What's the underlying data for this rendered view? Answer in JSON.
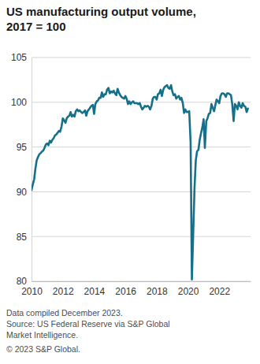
{
  "chart_data": {
    "type": "line",
    "title": "US manufacturing output volume,",
    "subtitle": "2017 = 100",
    "notes": [
      "Data compiled December 2023.",
      "Source: US Federal Reserve via S&P Global",
      "Market Intelligence.",
      "© 2023 S&P Global."
    ],
    "color": "#16708a",
    "grid": true,
    "xlim": [
      2010,
      2024
    ],
    "ylim": [
      80,
      105
    ],
    "xticks": [
      2010,
      2012,
      2014,
      2016,
      2018,
      2020,
      2022
    ],
    "yticks": [
      80,
      85,
      90,
      95,
      100,
      105
    ],
    "x": [
      2010,
      2010.08,
      2010.17,
      2010.25,
      2010.33,
      2010.42,
      2010.5,
      2010.58,
      2010.67,
      2010.75,
      2010.83,
      2010.92,
      2011,
      2011.08,
      2011.17,
      2011.25,
      2011.33,
      2011.42,
      2011.5,
      2011.58,
      2011.67,
      2011.75,
      2011.83,
      2011.92,
      2012,
      2012.08,
      2012.17,
      2012.25,
      2012.33,
      2012.42,
      2012.5,
      2012.58,
      2012.67,
      2012.75,
      2012.83,
      2012.92,
      2013,
      2013.08,
      2013.17,
      2013.25,
      2013.33,
      2013.42,
      2013.5,
      2013.58,
      2013.67,
      2013.75,
      2013.83,
      2013.92,
      2014,
      2014.08,
      2014.17,
      2014.25,
      2014.33,
      2014.42,
      2014.5,
      2014.58,
      2014.67,
      2014.75,
      2014.83,
      2014.92,
      2015,
      2015.08,
      2015.17,
      2015.25,
      2015.33,
      2015.42,
      2015.5,
      2015.58,
      2015.67,
      2015.75,
      2015.83,
      2015.92,
      2016,
      2016.08,
      2016.17,
      2016.25,
      2016.33,
      2016.42,
      2016.5,
      2016.58,
      2016.67,
      2016.75,
      2016.83,
      2016.92,
      2017,
      2017.08,
      2017.17,
      2017.25,
      2017.33,
      2017.42,
      2017.5,
      2017.58,
      2017.67,
      2017.75,
      2017.83,
      2017.92,
      2018,
      2018.08,
      2018.17,
      2018.25,
      2018.33,
      2018.42,
      2018.5,
      2018.58,
      2018.67,
      2018.75,
      2018.83,
      2018.92,
      2019,
      2019.08,
      2019.17,
      2019.25,
      2019.33,
      2019.42,
      2019.5,
      2019.58,
      2019.67,
      2019.75,
      2019.83,
      2019.92,
      2020,
      2020.08,
      2020.17,
      2020.25,
      2020.33,
      2020.42,
      2020.5,
      2020.58,
      2020.67,
      2020.75,
      2020.83,
      2020.92,
      2021,
      2021.08,
      2021.17,
      2021.25,
      2021.33,
      2021.42,
      2021.5,
      2021.58,
      2021.67,
      2021.75,
      2021.83,
      2021.92,
      2022,
      2022.08,
      2022.17,
      2022.25,
      2022.33,
      2022.42,
      2022.5,
      2022.58,
      2022.67,
      2022.75,
      2022.83,
      2022.92,
      2023,
      2023.08,
      2023.17,
      2023.25,
      2023.33,
      2023.42,
      2023.5,
      2023.58,
      2023.67,
      2023.75,
      2023.83
    ],
    "values": [
      90.2,
      90.8,
      91.4,
      92.6,
      93.5,
      93.9,
      94.2,
      94.3,
      94.5,
      94.6,
      94.9,
      95.3,
      95.4,
      95.2,
      95.7,
      95.5,
      95.8,
      96.0,
      96.3,
      96.4,
      96.6,
      96.8,
      96.7,
      97.3,
      98.2,
      98.0,
      97.7,
      98.2,
      98.4,
      98.5,
      98.9,
      98.4,
      98.6,
      98.4,
      99.0,
      99.2,
      99.0,
      99.1,
      98.9,
      98.8,
      98.9,
      99.1,
      98.5,
      99.0,
      99.2,
      99.4,
      99.6,
      99.7,
      98.7,
      99.8,
      100.1,
      100.2,
      100.5,
      100.5,
      101.1,
      100.6,
      100.9,
      100.9,
      101.4,
      101.6,
      101.0,
      101.2,
      101.1,
      101.3,
      101.0,
      100.8,
      101.5,
      101.1,
      100.8,
      100.6,
      100.5,
      100.4,
      100.7,
      100.4,
      99.8,
      100.1,
      99.8,
      100.0,
      100.1,
      99.9,
      99.9,
      99.9,
      99.8,
      99.9,
      99.5,
      99.2,
      99.4,
      99.6,
      99.5,
      99.6,
      99.5,
      99.2,
      99.6,
      100.4,
      100.6,
      100.6,
      100.3,
      100.9,
      101.0,
      101.4,
      100.7,
      101.4,
      101.7,
      101.8,
      101.9,
      101.6,
      101.5,
      101.9,
      101.2,
      100.8,
      100.9,
      100.4,
      100.6,
      100.7,
      100.3,
      100.5,
      99.9,
      98.8,
      99.2,
      98.9,
      98.9,
      99.0,
      95.5,
      80.2,
      85.0,
      90.5,
      93.5,
      94.5,
      94.7,
      95.8,
      96.5,
      97.2,
      98.1,
      94.9,
      97.9,
      98.2,
      98.7,
      98.8,
      99.8,
      99.4,
      99.0,
      99.7,
      100.3,
      100.1,
      99.9,
      100.7,
      101.0,
      101.0,
      100.9,
      100.6,
      101.0,
      101.0,
      100.9,
      100.8,
      99.8,
      97.9,
      99.8,
      99.6,
      99.2,
      100.0,
      99.6,
      99.4,
      99.9,
      99.6,
      99.5,
      98.9,
      99.3
    ]
  }
}
